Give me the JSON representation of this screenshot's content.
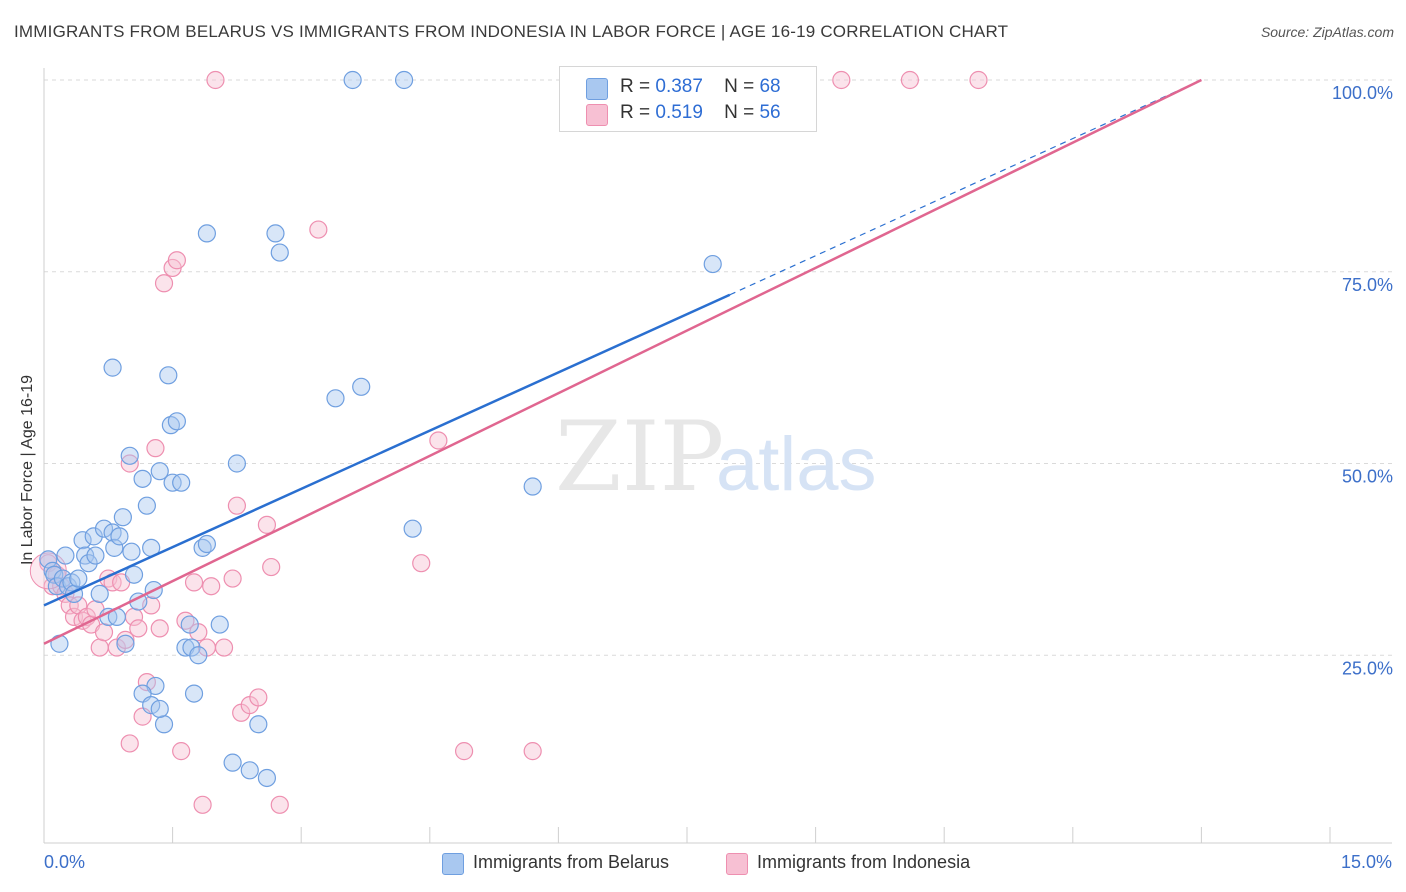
{
  "header": {
    "title": "IMMIGRANTS FROM BELARUS VS IMMIGRANTS FROM INDONESIA IN LABOR FORCE | AGE 16-19 CORRELATION CHART",
    "source": "Source: ZipAtlas.com"
  },
  "watermark": {
    "zip": "ZIP",
    "atlas": "atlas"
  },
  "legend": {
    "r_label": "R =",
    "n_label": "N =",
    "belarus": {
      "r": "0.387",
      "n": "68"
    },
    "indonesia": {
      "r": "0.519",
      "n": "56"
    }
  },
  "colors": {
    "belarus_fill": "#a9c8f0",
    "belarus_stroke": "#6f9fe0",
    "belarus_line": "#2a6fd0",
    "indonesia_fill": "#f7c0d3",
    "indonesia_stroke": "#ee8fb0",
    "indonesia_line": "#e06690",
    "tick_text": "#3c6fc9",
    "grid": "#dadada"
  },
  "chart_data": {
    "type": "scatter",
    "title": "IMMIGRANTS FROM BELARUS VS IMMIGRANTS FROM INDONESIA IN LABOR FORCE | AGE 16-19 CORRELATION CHART",
    "xlabel": "",
    "ylabel": "In Labor Force | Age 16-19",
    "xlim": [
      0,
      15
    ],
    "ylim": [
      0,
      105
    ],
    "x_tick_labels": {
      "min": "0.0%",
      "max": "15.0%"
    },
    "y_ticks": [
      {
        "value": 25,
        "label": "25.0%"
      },
      {
        "value": 50,
        "label": "50.0%"
      },
      {
        "value": 75,
        "label": "75.0%"
      },
      {
        "value": 100,
        "label": "100.0%"
      }
    ],
    "series": [
      {
        "name": "Immigrants from Belarus",
        "r": 0.387,
        "n": 68,
        "trend": {
          "x0": 0.0,
          "y0": 31.5,
          "x1": 8.0,
          "y1": 72.0,
          "dash_to_x": 13.5,
          "dash_to_y": 100.0
        },
        "points": [
          [
            0.05,
            37.5
          ],
          [
            0.1,
            36
          ],
          [
            0.12,
            35.5
          ],
          [
            0.15,
            34
          ],
          [
            0.18,
            26.5
          ],
          [
            0.22,
            35
          ],
          [
            0.25,
            38
          ],
          [
            0.28,
            34
          ],
          [
            0.32,
            34.5
          ],
          [
            0.35,
            33
          ],
          [
            0.4,
            35
          ],
          [
            0.45,
            40
          ],
          [
            0.48,
            38
          ],
          [
            0.52,
            37
          ],
          [
            0.58,
            40.5
          ],
          [
            0.6,
            38
          ],
          [
            0.65,
            33
          ],
          [
            0.7,
            41.5
          ],
          [
            0.75,
            30
          ],
          [
            0.8,
            41
          ],
          [
            0.82,
            39
          ],
          [
            0.85,
            30
          ],
          [
            0.88,
            40.5
          ],
          [
            0.92,
            43
          ],
          [
            0.95,
            26.5
          ],
          [
            1.0,
            51
          ],
          [
            1.02,
            38.5
          ],
          [
            1.05,
            35.5
          ],
          [
            1.1,
            32
          ],
          [
            1.15,
            48
          ],
          [
            1.2,
            44.5
          ],
          [
            1.25,
            39
          ],
          [
            1.28,
            33.5
          ],
          [
            1.3,
            21
          ],
          [
            1.35,
            49
          ],
          [
            1.4,
            16
          ],
          [
            1.45,
            61.5
          ],
          [
            1.48,
            55
          ],
          [
            1.5,
            47.5
          ],
          [
            1.55,
            55.5
          ],
          [
            1.6,
            47.5
          ],
          [
            1.65,
            26
          ],
          [
            1.7,
            29
          ],
          [
            1.72,
            26
          ],
          [
            1.75,
            20
          ],
          [
            1.8,
            25
          ],
          [
            1.85,
            39
          ],
          [
            1.9,
            39.5
          ],
          [
            2.05,
            29
          ],
          [
            2.2,
            11
          ],
          [
            2.25,
            50
          ],
          [
            2.4,
            10
          ],
          [
            2.5,
            16
          ],
          [
            2.6,
            9
          ],
          [
            2.7,
            80
          ],
          [
            2.75,
            77.5
          ],
          [
            1.15,
            20
          ],
          [
            1.25,
            18.5
          ],
          [
            1.35,
            18
          ],
          [
            0.8,
            62.5
          ],
          [
            1.9,
            80
          ],
          [
            3.4,
            58.5
          ],
          [
            3.7,
            60
          ],
          [
            3.6,
            100
          ],
          [
            4.2,
            100
          ],
          [
            4.3,
            41.5
          ],
          [
            5.7,
            47
          ],
          [
            7.8,
            76
          ]
        ]
      },
      {
        "name": "Immigrants from Indonesia",
        "r": 0.519,
        "n": 56,
        "trend": {
          "x0": 0.0,
          "y0": 26.5,
          "x1": 13.5,
          "y1": 100.0
        },
        "points": [
          [
            0.05,
            37
          ],
          [
            0.1,
            34
          ],
          [
            0.15,
            35.5
          ],
          [
            0.2,
            34
          ],
          [
            0.25,
            33
          ],
          [
            0.3,
            31.5
          ],
          [
            0.35,
            30
          ],
          [
            0.4,
            31.5
          ],
          [
            0.45,
            29.5
          ],
          [
            0.5,
            30
          ],
          [
            0.55,
            29
          ],
          [
            0.6,
            31
          ],
          [
            0.65,
            26
          ],
          [
            0.7,
            28
          ],
          [
            0.75,
            35
          ],
          [
            0.8,
            34.5
          ],
          [
            0.85,
            26
          ],
          [
            0.9,
            34.5
          ],
          [
            0.95,
            27
          ],
          [
            1.0,
            13.5
          ],
          [
            1.05,
            30
          ],
          [
            1.1,
            28.5
          ],
          [
            1.15,
            17
          ],
          [
            1.2,
            21.5
          ],
          [
            1.25,
            31.5
          ],
          [
            1.3,
            52
          ],
          [
            1.35,
            28.5
          ],
          [
            1.4,
            73.5
          ],
          [
            1.5,
            75.5
          ],
          [
            1.55,
            76.5
          ],
          [
            1.6,
            12.5
          ],
          [
            1.65,
            29.5
          ],
          [
            1.75,
            34.5
          ],
          [
            1.8,
            28
          ],
          [
            1.85,
            5.5
          ],
          [
            1.9,
            26
          ],
          [
            1.95,
            34
          ],
          [
            2.0,
            100
          ],
          [
            2.1,
            26
          ],
          [
            2.2,
            35
          ],
          [
            2.25,
            44.5
          ],
          [
            2.3,
            17.5
          ],
          [
            2.4,
            18.5
          ],
          [
            2.5,
            19.5
          ],
          [
            2.6,
            42
          ],
          [
            2.65,
            36.5
          ],
          [
            2.75,
            5.5
          ],
          [
            3.2,
            80.5
          ],
          [
            4.4,
            37
          ],
          [
            4.6,
            53
          ],
          [
            4.9,
            12.5
          ],
          [
            5.7,
            12.5
          ],
          [
            9.3,
            100
          ],
          [
            10.1,
            100
          ],
          [
            10.9,
            100
          ],
          [
            1.0,
            50
          ]
        ]
      }
    ]
  },
  "bottom_legend": {
    "belarus_label": "Immigrants from Belarus",
    "indonesia_label": "Immigrants from Indonesia"
  }
}
